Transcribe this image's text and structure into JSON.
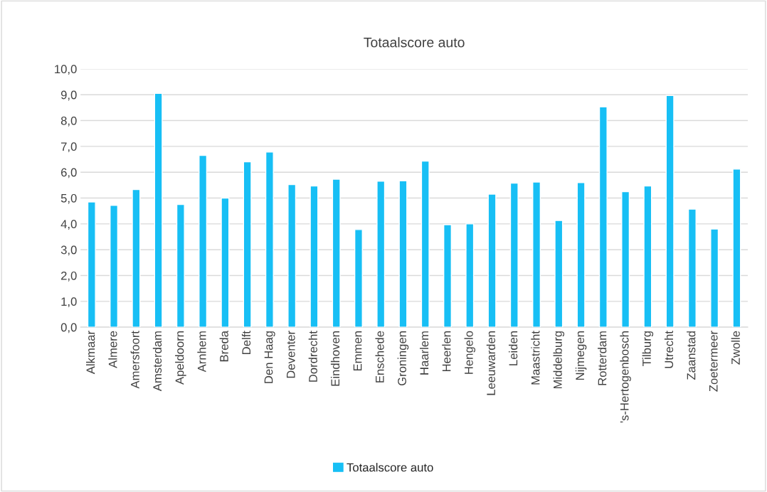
{
  "chart_data": {
    "type": "bar",
    "title": "Totaalscore auto",
    "categories": [
      "Alkmaar",
      "Almere",
      "Amersfoort",
      "Amsterdam",
      "Apeldoorn",
      "Arnhem",
      "Breda",
      "Delft",
      "Den Haag",
      "Deventer",
      "Dordrecht",
      "Eindhoven",
      "Emmen",
      "Enschede",
      "Groningen",
      "Haarlem",
      "Heerlen",
      "Hengelo",
      "Leeuwarden",
      "Leiden",
      "Maastricht",
      "Middelburg",
      "Nijmegen",
      "Rotterdam",
      "'s-Hertogenbosch",
      "Tilburg",
      "Utrecht",
      "Zaanstad",
      "Zoetermeer",
      "Zwolle"
    ],
    "series": [
      {
        "name": "Totaalscore auto",
        "color": "#17bff5",
        "values": [
          4.85,
          4.72,
          5.33,
          9.05,
          4.75,
          6.65,
          5.0,
          6.4,
          6.78,
          5.52,
          5.47,
          5.73,
          3.78,
          5.65,
          5.67,
          6.43,
          3.97,
          4.0,
          5.15,
          5.58,
          5.62,
          4.13,
          5.6,
          8.53,
          5.25,
          5.47,
          8.97,
          4.57,
          3.8,
          6.12
        ]
      }
    ],
    "ylim": [
      0,
      10
    ],
    "yticks": [
      {
        "value": 0,
        "label": "0,0"
      },
      {
        "value": 1,
        "label": "1,0"
      },
      {
        "value": 2,
        "label": "2,0"
      },
      {
        "value": 3,
        "label": "3,0"
      },
      {
        "value": 4,
        "label": "4,0"
      },
      {
        "value": 5,
        "label": "5,0"
      },
      {
        "value": 6,
        "label": "6,0"
      },
      {
        "value": 7,
        "label": "7,0"
      },
      {
        "value": 8,
        "label": "8,0"
      },
      {
        "value": 9,
        "label": "9,0"
      },
      {
        "value": 10,
        "label": "10,0"
      }
    ],
    "grid": "y",
    "legend": "bottom"
  }
}
